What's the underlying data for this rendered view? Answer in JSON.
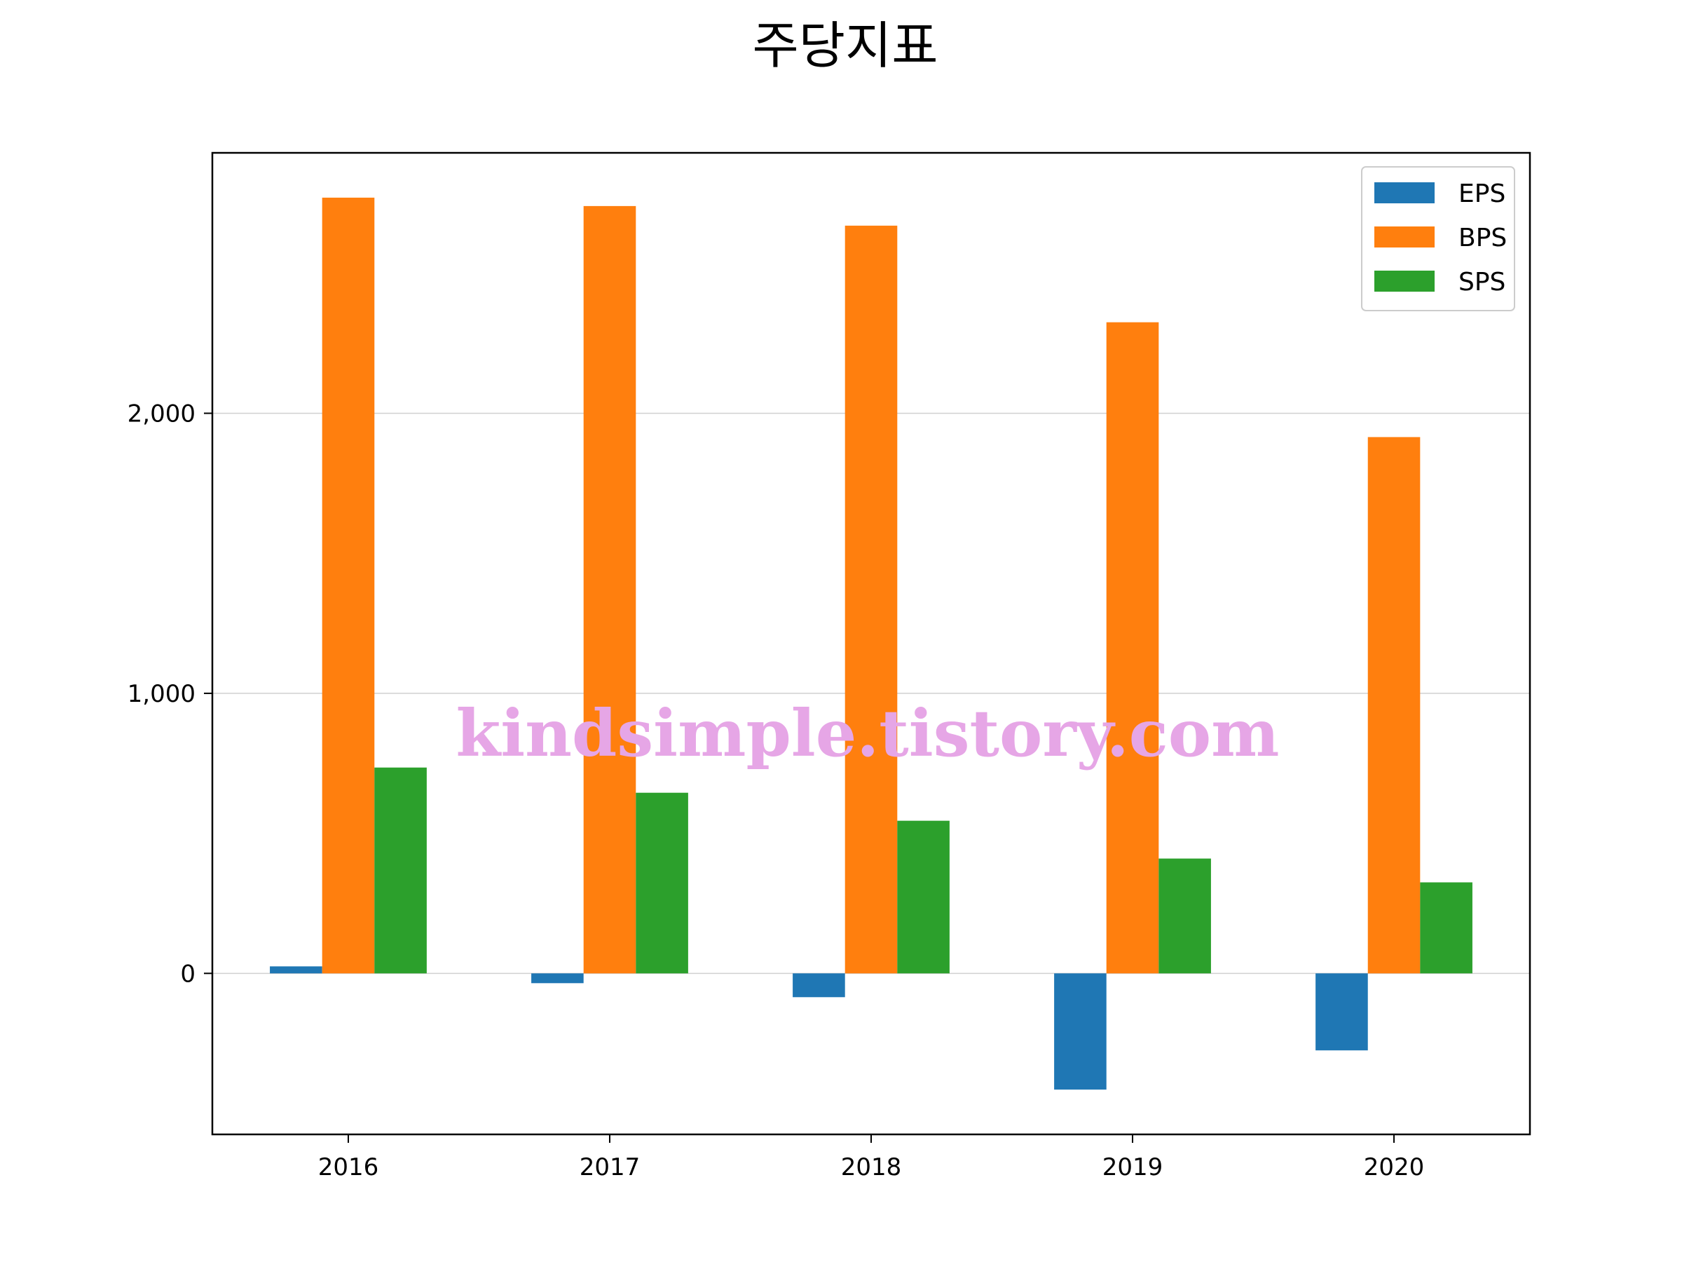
{
  "chart_data": {
    "type": "bar",
    "title": "주당지표",
    "xlabel": "",
    "ylabel": "",
    "categories": [
      "2016",
      "2017",
      "2018",
      "2019",
      "2020"
    ],
    "series": [
      {
        "name": "EPS",
        "color": "#1f77b4",
        "values": [
          25,
          -35,
          -85,
          -415,
          -275
        ]
      },
      {
        "name": "BPS",
        "color": "#ff7f0e",
        "values": [
          2770,
          2740,
          2670,
          2325,
          1915
        ]
      },
      {
        "name": "SPS",
        "color": "#2ca02c",
        "values": [
          735,
          645,
          545,
          410,
          325
        ]
      }
    ],
    "ylim": [
      -575,
      2930
    ],
    "yticks": [
      0,
      1000,
      2000
    ],
    "ytick_labels": [
      "0",
      "1,000",
      "2,000"
    ],
    "grid": "horizontal",
    "legend_position": "top-right"
  },
  "watermark": "kindsimple.tistory.com"
}
